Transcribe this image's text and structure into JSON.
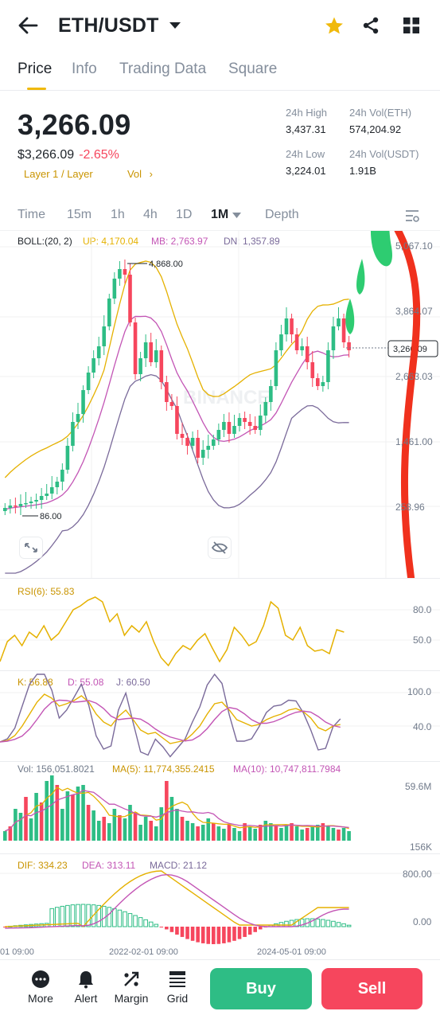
{
  "header": {
    "pair": "ETH/USDT",
    "icons": [
      "back-arrow-icon",
      "caret-down-icon",
      "star-icon",
      "share-icon",
      "grid-icon"
    ],
    "star_color": "#f0b90b"
  },
  "tabs": [
    {
      "label": "Price",
      "active": true
    },
    {
      "label": "Info",
      "active": false
    },
    {
      "label": "Trading Data",
      "active": false
    },
    {
      "label": "Square",
      "active": false
    }
  ],
  "ticker": {
    "last_price": "3,266.09",
    "last_price_usd": "$3,266.09",
    "change_pct": "-2.65%",
    "tag_category": "Layer 1 / Layer",
    "tag_vol": "Vol",
    "high_label": "24h High",
    "high_value": "3,437.31",
    "low_label": "24h Low",
    "low_value": "3,224.01",
    "vol_eth_label": "24h Vol(ETH)",
    "vol_eth_value": "574,204.92",
    "vol_usdt_label": "24h Vol(USDT)",
    "vol_usdt_value": "1.91B"
  },
  "timeframes": {
    "items": [
      "Time",
      "15m",
      "1h",
      "4h",
      "1D",
      "1M",
      "Depth"
    ],
    "active": "1M"
  },
  "main_chart": {
    "boll_label": "BOLL:(20, 2)",
    "up_label": "UP: 4,170.04",
    "mb_label": "MB: 2,763.97",
    "dn_label": "DN: 1,357.89",
    "high_marker": "4,868.00",
    "low_marker": "86.00",
    "current_price_tag": "3,266.09",
    "watermark": "BINANCE",
    "y_axis": [
      "5,067.10",
      "3,864.07",
      "2,663.03",
      "1,461.00",
      "258.96"
    ]
  },
  "rsi": {
    "label": "RSI(6): 55.83",
    "y_axis": [
      "80.0",
      "50.0"
    ]
  },
  "kdj": {
    "k_label": "K: 56.88",
    "d_label": "D: 55.08",
    "j_label": "J: 60.50",
    "y_axis": [
      "100.0",
      "40.0"
    ]
  },
  "volume": {
    "vol_label": "Vol: 156,051.8021",
    "ma5_label": "MA(5): 11,774,355.2415",
    "ma10_label": "MA(10): 10,747,811.7984",
    "y_axis": [
      "59.6M",
      "156K"
    ]
  },
  "macd": {
    "dif_label": "DIF: 334.23",
    "dea_label": "DEA: 313.11",
    "macd_label": "MACD: 21.12",
    "y_axis": [
      "800.00",
      "0.00"
    ]
  },
  "x_axis": [
    "01 09:00",
    "2022-02-01 09:00",
    "2024-05-01 09:00"
  ],
  "bottom_bar": {
    "more": "More",
    "alert": "Alert",
    "margin": "Margin",
    "grid": "Grid",
    "buy": "Buy",
    "sell": "Sell"
  },
  "colors": {
    "up": "#2ebd85",
    "down": "#f6465d",
    "accent": "#f0b90b",
    "boll_mb": "#e5b100",
    "boll_up": "#c355b5",
    "boll_dn": "#7a6a9a"
  }
}
